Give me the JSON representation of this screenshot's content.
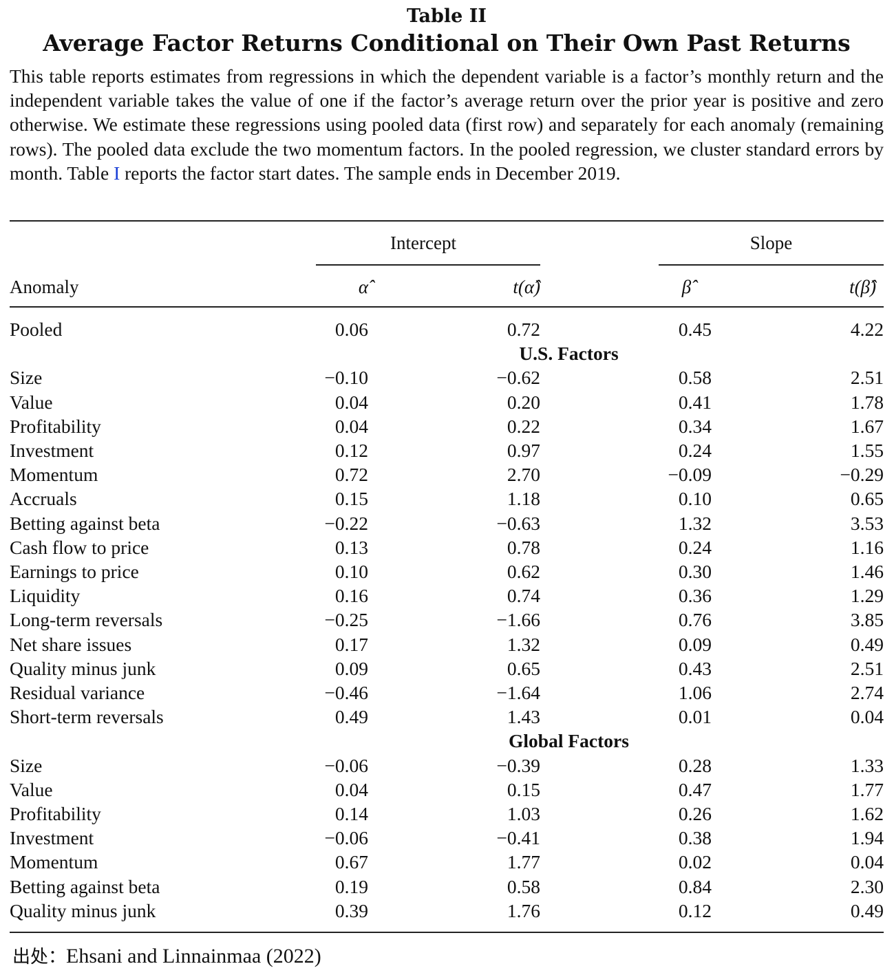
{
  "table_label": "Table II",
  "title": "Average Factor Returns Conditional on Their Own Past Returns",
  "caption": {
    "before_ref": "This table reports estimates from regressions in which the dependent variable is a factor’s monthly return and the independent variable takes the value of one if the factor’s average return over the prior year is positive and zero otherwise. We estimate these regressions using pooled data (first row) and separately for each anomaly (remaining rows). The pooled data exclude the two momentum factors. In the pooled regression, we cluster standard errors by month. Table ",
    "ref": "I",
    "after_ref": " reports the factor start dates. The sample ends in December 2019."
  },
  "header": {
    "group_intercept": "Intercept",
    "group_slope": "Slope",
    "col_anomaly": "Anomaly",
    "col_alpha": "α̂",
    "col_t_alpha": "t(α̂)",
    "col_beta": "β̂",
    "col_t_beta": "t(β̂)"
  },
  "pooled": {
    "name": "Pooled",
    "alpha": "0.06",
    "t_alpha": "0.72",
    "beta": "0.45",
    "t_beta": "4.22"
  },
  "us_section": "U.S. Factors",
  "us_rows": [
    {
      "name": "Size",
      "alpha": "−0.10",
      "t_alpha": "−0.62",
      "beta": "0.58",
      "t_beta": "2.51"
    },
    {
      "name": "Value",
      "alpha": "0.04",
      "t_alpha": "0.20",
      "beta": "0.41",
      "t_beta": "1.78"
    },
    {
      "name": "Profitability",
      "alpha": "0.04",
      "t_alpha": "0.22",
      "beta": "0.34",
      "t_beta": "1.67"
    },
    {
      "name": "Investment",
      "alpha": "0.12",
      "t_alpha": "0.97",
      "beta": "0.24",
      "t_beta": "1.55"
    },
    {
      "name": "Momentum",
      "alpha": "0.72",
      "t_alpha": "2.70",
      "beta": "−0.09",
      "t_beta": "−0.29"
    },
    {
      "name": "Accruals",
      "alpha": "0.15",
      "t_alpha": "1.18",
      "beta": "0.10",
      "t_beta": "0.65"
    },
    {
      "name": "Betting against beta",
      "alpha": "−0.22",
      "t_alpha": "−0.63",
      "beta": "1.32",
      "t_beta": "3.53"
    },
    {
      "name": "Cash flow to price",
      "alpha": "0.13",
      "t_alpha": "0.78",
      "beta": "0.24",
      "t_beta": "1.16"
    },
    {
      "name": "Earnings to price",
      "alpha": "0.10",
      "t_alpha": "0.62",
      "beta": "0.30",
      "t_beta": "1.46"
    },
    {
      "name": "Liquidity",
      "alpha": "0.16",
      "t_alpha": "0.74",
      "beta": "0.36",
      "t_beta": "1.29"
    },
    {
      "name": "Long-term reversals",
      "alpha": "−0.25",
      "t_alpha": "−1.66",
      "beta": "0.76",
      "t_beta": "3.85"
    },
    {
      "name": "Net share issues",
      "alpha": "0.17",
      "t_alpha": "1.32",
      "beta": "0.09",
      "t_beta": "0.49"
    },
    {
      "name": "Quality minus junk",
      "alpha": "0.09",
      "t_alpha": "0.65",
      "beta": "0.43",
      "t_beta": "2.51"
    },
    {
      "name": "Residual variance",
      "alpha": "−0.46",
      "t_alpha": "−1.64",
      "beta": "1.06",
      "t_beta": "2.74"
    },
    {
      "name": "Short-term reversals",
      "alpha": "0.49",
      "t_alpha": "1.43",
      "beta": "0.01",
      "t_beta": "0.04"
    }
  ],
  "global_section": "Global Factors",
  "global_rows": [
    {
      "name": "Size",
      "alpha": "−0.06",
      "t_alpha": "−0.39",
      "beta": "0.28",
      "t_beta": "1.33"
    },
    {
      "name": "Value",
      "alpha": "0.04",
      "t_alpha": "0.15",
      "beta": "0.47",
      "t_beta": "1.77"
    },
    {
      "name": "Profitability",
      "alpha": "0.14",
      "t_alpha": "1.03",
      "beta": "0.26",
      "t_beta": "1.62"
    },
    {
      "name": "Investment",
      "alpha": "−0.06",
      "t_alpha": "−0.41",
      "beta": "0.38",
      "t_beta": "1.94"
    },
    {
      "name": "Momentum",
      "alpha": "0.67",
      "t_alpha": "1.77",
      "beta": "0.02",
      "t_beta": "0.04"
    },
    {
      "name": "Betting against beta",
      "alpha": "0.19",
      "t_alpha": "0.58",
      "beta": "0.84",
      "t_beta": "2.30"
    },
    {
      "name": "Quality minus junk",
      "alpha": "0.39",
      "t_alpha": "1.76",
      "beta": "0.12",
      "t_beta": "0.49"
    }
  ],
  "source": {
    "label": "出处：",
    "text": "Ehsani and Linnainmaa (2022)"
  }
}
